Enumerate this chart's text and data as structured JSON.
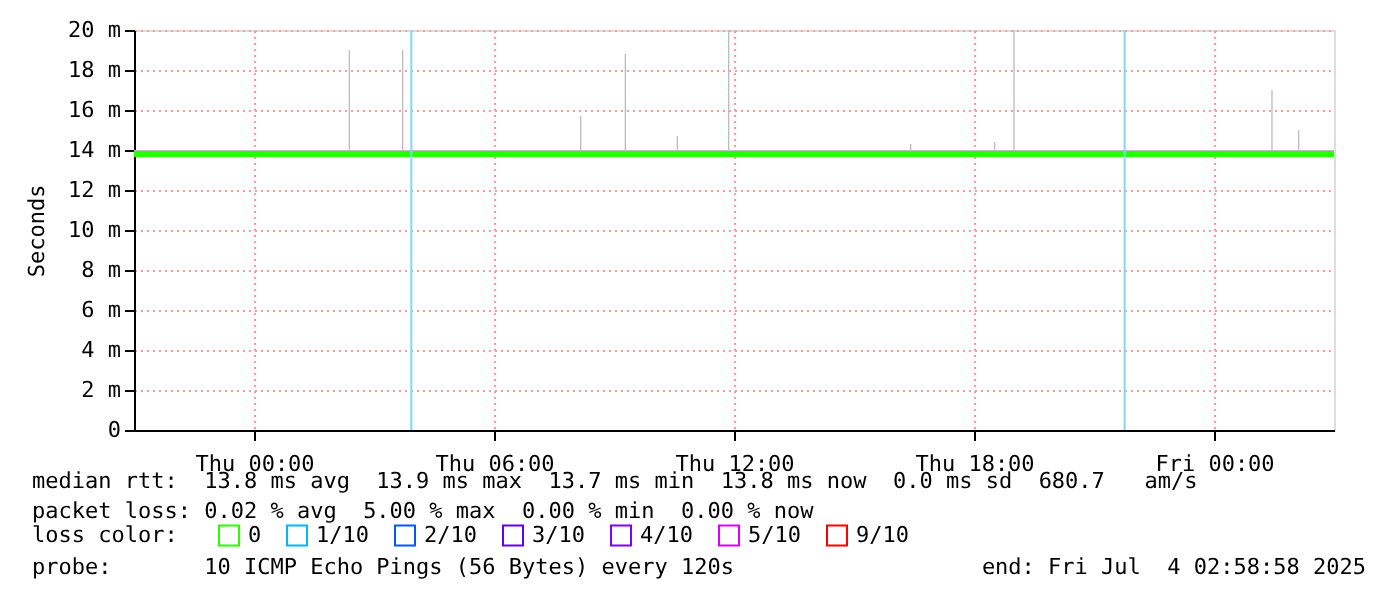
{
  "chart_data": {
    "type": "line",
    "ylabel": "Seconds",
    "xlim": [
      "2025-07-02T21:00",
      "2025-07-04T03:00"
    ],
    "xticks": [
      {
        "value": "2025-07-03T00:00",
        "label": "Thu 00:00"
      },
      {
        "value": "2025-07-03T06:00",
        "label": "Thu 06:00"
      },
      {
        "value": "2025-07-03T12:00",
        "label": "Thu 12:00"
      },
      {
        "value": "2025-07-03T18:00",
        "label": "Thu 18:00"
      },
      {
        "value": "2025-07-04T00:00",
        "label": "Fri 00:00"
      }
    ],
    "ylim": [
      0,
      20
    ],
    "yticks": [
      0,
      {
        "value": 2,
        "label": "2 m"
      },
      {
        "value": 4,
        "label": "4 m"
      },
      {
        "value": 6,
        "label": "6 m"
      },
      {
        "value": 8,
        "label": "8 m"
      },
      {
        "value": 10,
        "label": "10 m"
      },
      {
        "value": 12,
        "label": "12 m"
      },
      {
        "value": 14,
        "label": "14 m"
      },
      {
        "value": 16,
        "label": "16 m"
      },
      {
        "value": 18,
        "label": "18 m"
      },
      {
        "value": 20,
        "label": "20 m"
      }
    ],
    "grid": true,
    "legend": "bottom",
    "legend_title": "loss color:",
    "series": [
      {
        "name": "0",
        "color": "#26ff00",
        "x": [
          "2025-07-02T21:00",
          "2025-07-02T22:00",
          "2025-07-02T23:00",
          "2025-07-03T00:00",
          "2025-07-03T01:00",
          "2025-07-03T02:00",
          "2025-07-03T02:20",
          "2025-07-03T02:22",
          "2025-07-03T02:24",
          "2025-07-03T03:00",
          "2025-07-03T03:40",
          "2025-07-03T03:42",
          "2025-07-03T03:44",
          "2025-07-03T04:00",
          "2025-07-03T05:00",
          "2025-07-03T06:00",
          "2025-07-03T07:00",
          "2025-07-03T08:00",
          "2025-07-03T08:07",
          "2025-07-03T08:09",
          "2025-07-03T08:11",
          "2025-07-03T09:00",
          "2025-07-03T09:14",
          "2025-07-03T09:16",
          "2025-07-03T09:18",
          "2025-07-03T10:00",
          "2025-07-03T10:32",
          "2025-07-03T10:34",
          "2025-07-03T10:36",
          "2025-07-03T11:00",
          "2025-07-03T11:49",
          "2025-07-03T11:51",
          "2025-07-03T11:53",
          "2025-07-03T12:00",
          "2025-07-03T13:00",
          "2025-07-03T14:00",
          "2025-07-03T15:00",
          "2025-07-03T16:00",
          "2025-07-03T16:22",
          "2025-07-03T16:24",
          "2025-07-03T16:26",
          "2025-07-03T17:00",
          "2025-07-03T18:00",
          "2025-07-03T18:28",
          "2025-07-03T18:30",
          "2025-07-03T18:32",
          "2025-07-03T18:57",
          "2025-07-03T18:59",
          "2025-07-03T19:01",
          "2025-07-03T20:00",
          "2025-07-03T21:00",
          "2025-07-03T22:00",
          "2025-07-03T23:00",
          "2025-07-04T00:00",
          "2025-07-04T01:00",
          "2025-07-04T01:24",
          "2025-07-04T01:26",
          "2025-07-04T01:28",
          "2025-07-04T02:00",
          "2025-07-04T02:04",
          "2025-07-04T02:06",
          "2025-07-04T02:08",
          "2025-07-04T03:00"
        ],
        "values": [
          13.8,
          13.8,
          13.8,
          13.8,
          13.8,
          13.8,
          13.8,
          13.8,
          13.8,
          13.8,
          13.8,
          13.8,
          13.8,
          13.8,
          13.8,
          13.8,
          13.8,
          13.8,
          13.8,
          13.8,
          13.8,
          13.8,
          13.8,
          13.8,
          13.8,
          13.8,
          13.8,
          13.8,
          13.8,
          13.8,
          13.8,
          13.8,
          13.8,
          13.8,
          13.8,
          13.8,
          13.8,
          13.8,
          13.8,
          13.8,
          13.8,
          13.8,
          13.8,
          13.8,
          13.8,
          13.8,
          13.8,
          13.8,
          13.8,
          13.8,
          13.8,
          13.8,
          13.8,
          13.8,
          13.8,
          13.8,
          13.8,
          13.8,
          13.8,
          13.8,
          13.8,
          13.8,
          13.8
        ],
        "lower": [
          13.7,
          13.7,
          13.7,
          13.7,
          13.7,
          13.7,
          13.7,
          13.7,
          13.7,
          13.7,
          13.7,
          13.7,
          13.7,
          13.7,
          13.7,
          13.7,
          13.7,
          13.7,
          13.7,
          13.7,
          13.7,
          13.7,
          13.7,
          13.7,
          13.7,
          13.7,
          13.7,
          13.7,
          13.7,
          13.7,
          13.7,
          13.7,
          13.7,
          13.7,
          13.7,
          13.7,
          13.7,
          13.7,
          13.7,
          13.7,
          13.7,
          13.7,
          13.7,
          13.7,
          13.7,
          13.7,
          13.7,
          13.7,
          13.7,
          13.7,
          13.7,
          13.7,
          13.7,
          13.7,
          13.7,
          13.7,
          13.7,
          13.7,
          13.7,
          13.7,
          13.7,
          13.7,
          13.7
        ],
        "upper": [
          14,
          14,
          14,
          14,
          14,
          14,
          14,
          19,
          14,
          14,
          14,
          19,
          14,
          14,
          14,
          14,
          14,
          14,
          14,
          15.7,
          14,
          14,
          14,
          18.8,
          14,
          14,
          14,
          14.7,
          14,
          14,
          14,
          20,
          14,
          14,
          14,
          14,
          14,
          14,
          14,
          14.3,
          14,
          14,
          14,
          14,
          14.4,
          14,
          14,
          20,
          14,
          14,
          14,
          14,
          14,
          14,
          14,
          14,
          17,
          14,
          14,
          14,
          15,
          14,
          14
        ]
      },
      {
        "name": "1/10",
        "color": "#00b8ff"
      },
      {
        "name": "2/10",
        "color": "#0059ff"
      },
      {
        "name": "3/10",
        "color": "#5e00ff"
      },
      {
        "name": "4/10",
        "color": "#7e00ff"
      },
      {
        "name": "5/10",
        "color": "#dd00ff"
      },
      {
        "name": "9/10",
        "color": "#ff0000"
      }
    ],
    "ref_lines": [
      {
        "axis": "x",
        "value": "2025-07-03T03:56",
        "color": "#80d8f0"
      },
      {
        "axis": "x",
        "value": "2025-07-03T21:46",
        "color": "#80d8f0"
      }
    ],
    "annotations": [
      "median rtt:  13.8 ms avg  13.9 ms max  13.7 ms min  13.8 ms now  0.0 ms sd  680.7   am/s",
      "packet loss: 0.02 % avg  5.00 % max  0.00 % min  0.00 % now",
      "probe:       10 ICMP Echo Pings (56 Bytes) every 120s",
      "end: Fri Jul  4 02:58:58 2025"
    ]
  }
}
